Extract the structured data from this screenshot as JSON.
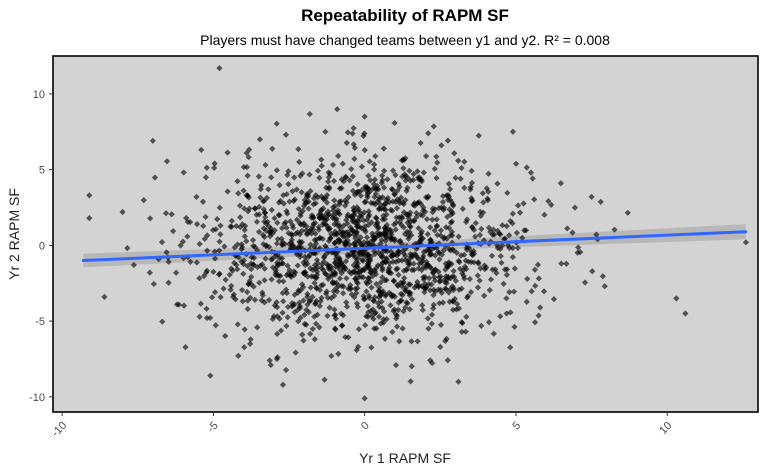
{
  "chart_data": {
    "type": "scatter",
    "title": "Repeatability of RAPM SF",
    "subtitle": "Players must have changed teams between y1 and y2. R² = 0.008",
    "xlabel": "Yr 1 RAPM SF",
    "ylabel": "Yr 2 RAPM SF",
    "xlim": [
      -10.3,
      13.0
    ],
    "ylim": [
      -11.0,
      12.5
    ],
    "x_ticks": [
      -10,
      -5,
      0,
      5,
      10
    ],
    "y_ticks": [
      -10,
      -5,
      0,
      5,
      10
    ],
    "x_tick_labels": [
      "-10",
      "-5",
      "0",
      "5",
      "10"
    ],
    "y_tick_labels": [
      "-10",
      "-5",
      "0",
      "5",
      "10"
    ],
    "x_tick_label_rotation": -45,
    "grid": false,
    "legend": "none",
    "colors": {
      "panel_background": "#d3d3d3",
      "points": "#000000",
      "trend_line": "#3366ff",
      "confidence_band": "#b5b5b5"
    },
    "trend_line": {
      "method": "linear",
      "x": [
        -9.3,
        12.6
      ],
      "y": [
        -1.0,
        0.9
      ],
      "band_halfwidth": [
        0.45,
        0.3,
        0.5
      ]
    },
    "point_count_approx": 1600,
    "point_cloud": {
      "center_x": 0.0,
      "center_y": -0.1,
      "sd_x": 2.7,
      "sd_y": 2.9
    },
    "outliers": [
      {
        "x": -4.8,
        "y": 11.7
      },
      {
        "x": 0.0,
        "y": 8.5
      },
      {
        "x": 4.9,
        "y": 7.5
      },
      {
        "x": 2.1,
        "y": 7.4
      },
      {
        "x": -2.6,
        "y": 7.3
      },
      {
        "x": -7.0,
        "y": 6.9
      },
      {
        "x": -5.4,
        "y": 6.3
      },
      {
        "x": -3.9,
        "y": 6.1
      },
      {
        "x": 12.6,
        "y": 0.2
      },
      {
        "x": 10.3,
        "y": -3.5
      },
      {
        "x": 10.6,
        "y": -4.5
      },
      {
        "x": -9.1,
        "y": 3.3
      },
      {
        "x": -9.1,
        "y": 1.8
      },
      {
        "x": -8.0,
        "y": 2.2
      },
      {
        "x": -7.1,
        "y": -1.8
      },
      {
        "x": -8.6,
        "y": -3.4
      },
      {
        "x": -5.1,
        "y": -8.6
      },
      {
        "x": -2.7,
        "y": -9.2
      },
      {
        "x": 0.0,
        "y": -10.1
      },
      {
        "x": 3.1,
        "y": -9.0
      },
      {
        "x": 7.5,
        "y": 3.2
      },
      {
        "x": 7.7,
        "y": 0.4
      },
      {
        "x": 6.5,
        "y": -1.2
      },
      {
        "x": -2.9,
        "y": -7.5
      },
      {
        "x": -3.1,
        "y": -7.9
      },
      {
        "x": -1.1,
        "y": -7.3
      },
      {
        "x": 2.5,
        "y": -6.7
      },
      {
        "x": -6.5,
        "y": -0.8
      },
      {
        "x": -6.2,
        "y": -3.9
      },
      {
        "x": 5.8,
        "y": -4.1
      }
    ]
  }
}
